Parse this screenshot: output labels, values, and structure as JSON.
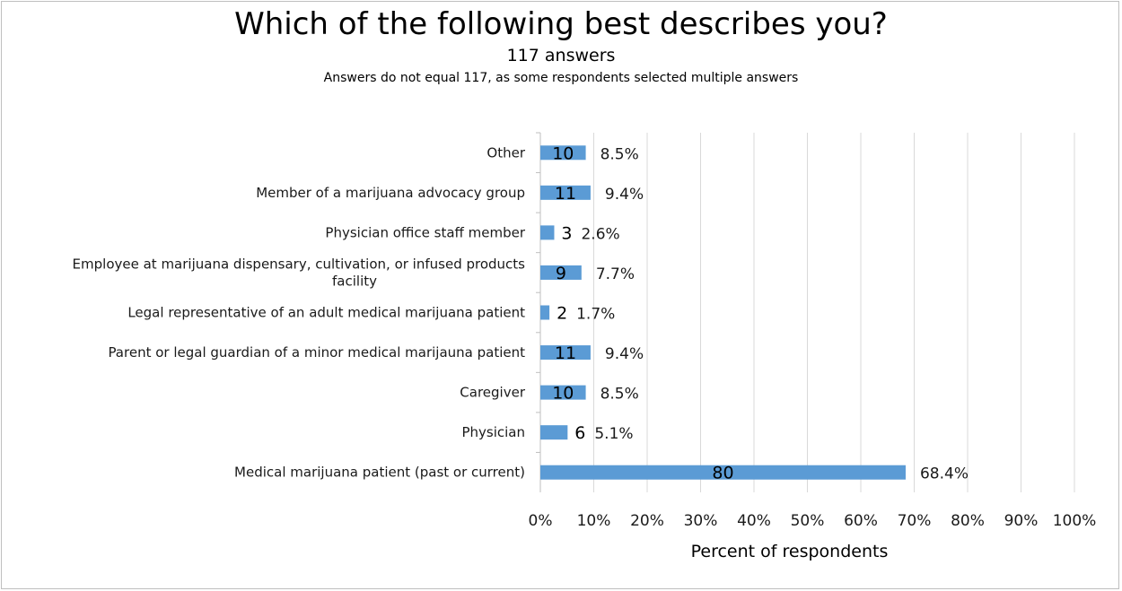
{
  "chart_data": {
    "type": "bar",
    "orientation": "horizontal",
    "title": "Which of the following best describes you?",
    "subtitle": "117 answers",
    "note": "Answers do not equal 117, as some respondents selected multiple answers",
    "xlabel": "Percent of respondents",
    "ylabel": "",
    "xlim": [
      0,
      100
    ],
    "x_ticks": [
      "0%",
      "10%",
      "20%",
      "30%",
      "40%",
      "50%",
      "60%",
      "70%",
      "80%",
      "90%",
      "100%"
    ],
    "grid": true,
    "bar_color": "#5b9bd5",
    "categories": [
      "Other",
      "Member of a marijuana advocacy group",
      "Physician office staff member",
      "Employee at marijuana dispensary, cultivation, or infused products facility",
      "Legal representative of an adult medical marijuana patient",
      "Parent or legal guardian of a minor medical marijauna patient",
      "Caregiver",
      "Physician",
      "Medical marijuana patient (past or current)"
    ],
    "category_label_lines": [
      [
        "Other"
      ],
      [
        "Member of a marijuana advocacy group"
      ],
      [
        "Physician office staff member"
      ],
      [
        "Employee at marijuana dispensary, cultivation, or infused products",
        "facility"
      ],
      [
        "Legal representative of an adult medical marijuana patient"
      ],
      [
        "Parent or legal guardian of a minor medical marijauna patient"
      ],
      [
        "Caregiver"
      ],
      [
        "Physician"
      ],
      [
        "Medical marijuana patient (past or current)"
      ]
    ],
    "counts": [
      10,
      11,
      3,
      9,
      2,
      11,
      10,
      6,
      80
    ],
    "values": [
      8.5,
      9.4,
      2.6,
      7.7,
      1.7,
      9.4,
      8.5,
      5.1,
      68.4
    ],
    "value_labels": [
      "8.5%",
      "9.4%",
      "2.6%",
      "7.7%",
      "1.7%",
      "9.4%",
      "8.5%",
      "5.1%",
      "68.4%"
    ]
  }
}
